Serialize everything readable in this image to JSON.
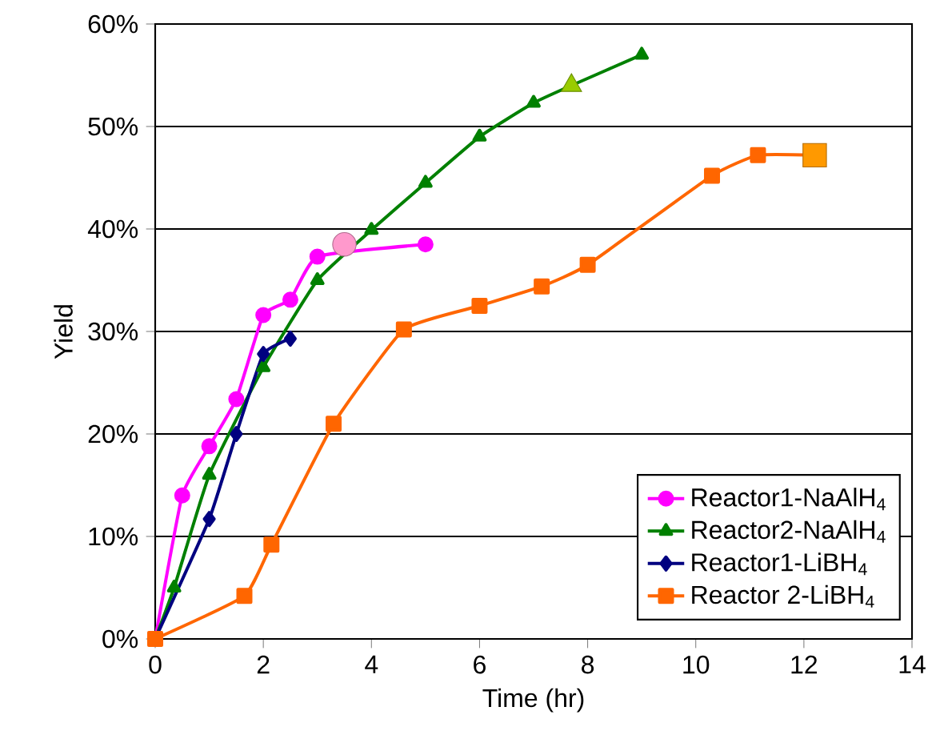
{
  "chart_data": {
    "type": "line",
    "xlabel": "Time (hr)",
    "ylabel": "Yield",
    "xlim": [
      0,
      14
    ],
    "xticks": [
      0,
      2,
      4,
      6,
      8,
      10,
      12,
      14
    ],
    "ylim": [
      0,
      60
    ],
    "yticks": [
      {
        "value": 0,
        "label": "0%"
      },
      {
        "value": 10,
        "label": "10%"
      },
      {
        "value": 20,
        "label": "20%"
      },
      {
        "value": 30,
        "label": "30%"
      },
      {
        "value": 40,
        "label": "40%"
      },
      {
        "value": 50,
        "label": "50%"
      },
      {
        "value": 60,
        "label": "60%"
      }
    ],
    "grid": "y",
    "legend": "bottom right",
    "line_style": "solid",
    "series": [
      {
        "name": "Reactor1-NaAlH$_{4}$",
        "color": "#ff00ff",
        "marker": "circle",
        "x": [
          0,
          0.5,
          1,
          1.5,
          2,
          2.5,
          3,
          3.5,
          5
        ],
        "values": [
          0,
          14,
          18.8,
          23.4,
          31.6,
          33.1,
          37.3,
          null,
          38.5
        ]
      },
      {
        "name": "Reactor2-NaAlH$_{4}$",
        "color": "#008000",
        "marker": "triangle",
        "x": [
          0,
          0.35,
          1,
          2,
          3,
          4,
          5,
          6,
          7,
          7.7,
          9
        ],
        "values": [
          0,
          5,
          16,
          26.5,
          35,
          39.9,
          44.5,
          49,
          52.3,
          54,
          57
        ]
      },
      {
        "name": "Reactor1-LiBH$_{4}$",
        "color": "#000080",
        "marker": "diamond",
        "x": [
          0,
          1,
          1.5,
          2,
          2.5
        ],
        "values": [
          0,
          11.7,
          20,
          27.8,
          29.3
        ]
      },
      {
        "name": "Reactor 2-LiBH$_{4}$",
        "color": "#ff6600",
        "marker": "square",
        "x": [
          0,
          1.65,
          2.15,
          3.3,
          4.6,
          6,
          7.15,
          8,
          10.3,
          11.15,
          12.2
        ],
        "values": [
          0,
          4.2,
          9.2,
          21,
          30.2,
          32.5,
          34.4,
          36.5,
          45.2,
          47.2,
          47.2
        ]
      },
      {
        "type": "scatter",
        "color": "#ff99cc",
        "marker": "circle",
        "x": [
          3.5
        ],
        "values": [
          38.5
        ]
      },
      {
        "type": "scatter",
        "color": "#99cc00",
        "marker": "triangle",
        "x": [
          7.7
        ],
        "values": [
          54
        ]
      },
      {
        "type": "scatter",
        "color": "#ff9900",
        "marker": "square",
        "x": [
          12.2
        ],
        "values": [
          47.2
        ]
      }
    ]
  }
}
